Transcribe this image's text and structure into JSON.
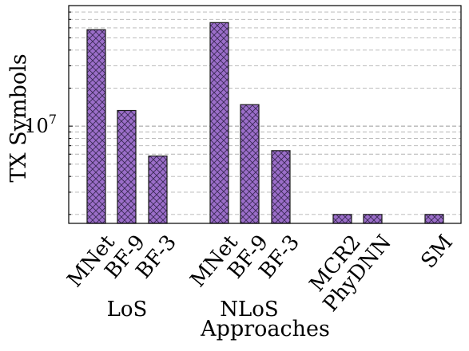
{
  "chart_data": {
    "type": "bar",
    "xlabel": "Approaches",
    "ylabel": "TX Symbols",
    "yscale": "log",
    "ylim": [
      1700000,
      90000000
    ],
    "ytick_labels": [
      {
        "value": 10000000,
        "label": "10",
        "exponent": "7"
      }
    ],
    "grid": "y-major-and-minor, dashed",
    "categories": [
      "MNet",
      "BF-9",
      "BF-3",
      "MNet",
      "BF-9",
      "BF-3",
      "MCR2",
      "PhyDNN",
      "SM"
    ],
    "groups": [
      {
        "label": "LoS",
        "categories": [
          "MNet",
          "BF-9",
          "BF-3"
        ]
      },
      {
        "label": "NLoS",
        "categories": [
          "MNet",
          "BF-9",
          "BF-3"
        ]
      },
      {
        "label": "",
        "categories": [
          "MCR2",
          "PhyDNN",
          "SM"
        ]
      }
    ],
    "values": [
      58000000,
      13300000,
      5800000,
      66000000,
      14800000,
      6400000,
      2000000,
      2000000,
      2000000
    ],
    "bar_color": "#9b6ec9",
    "hatch": "crosshatch"
  }
}
